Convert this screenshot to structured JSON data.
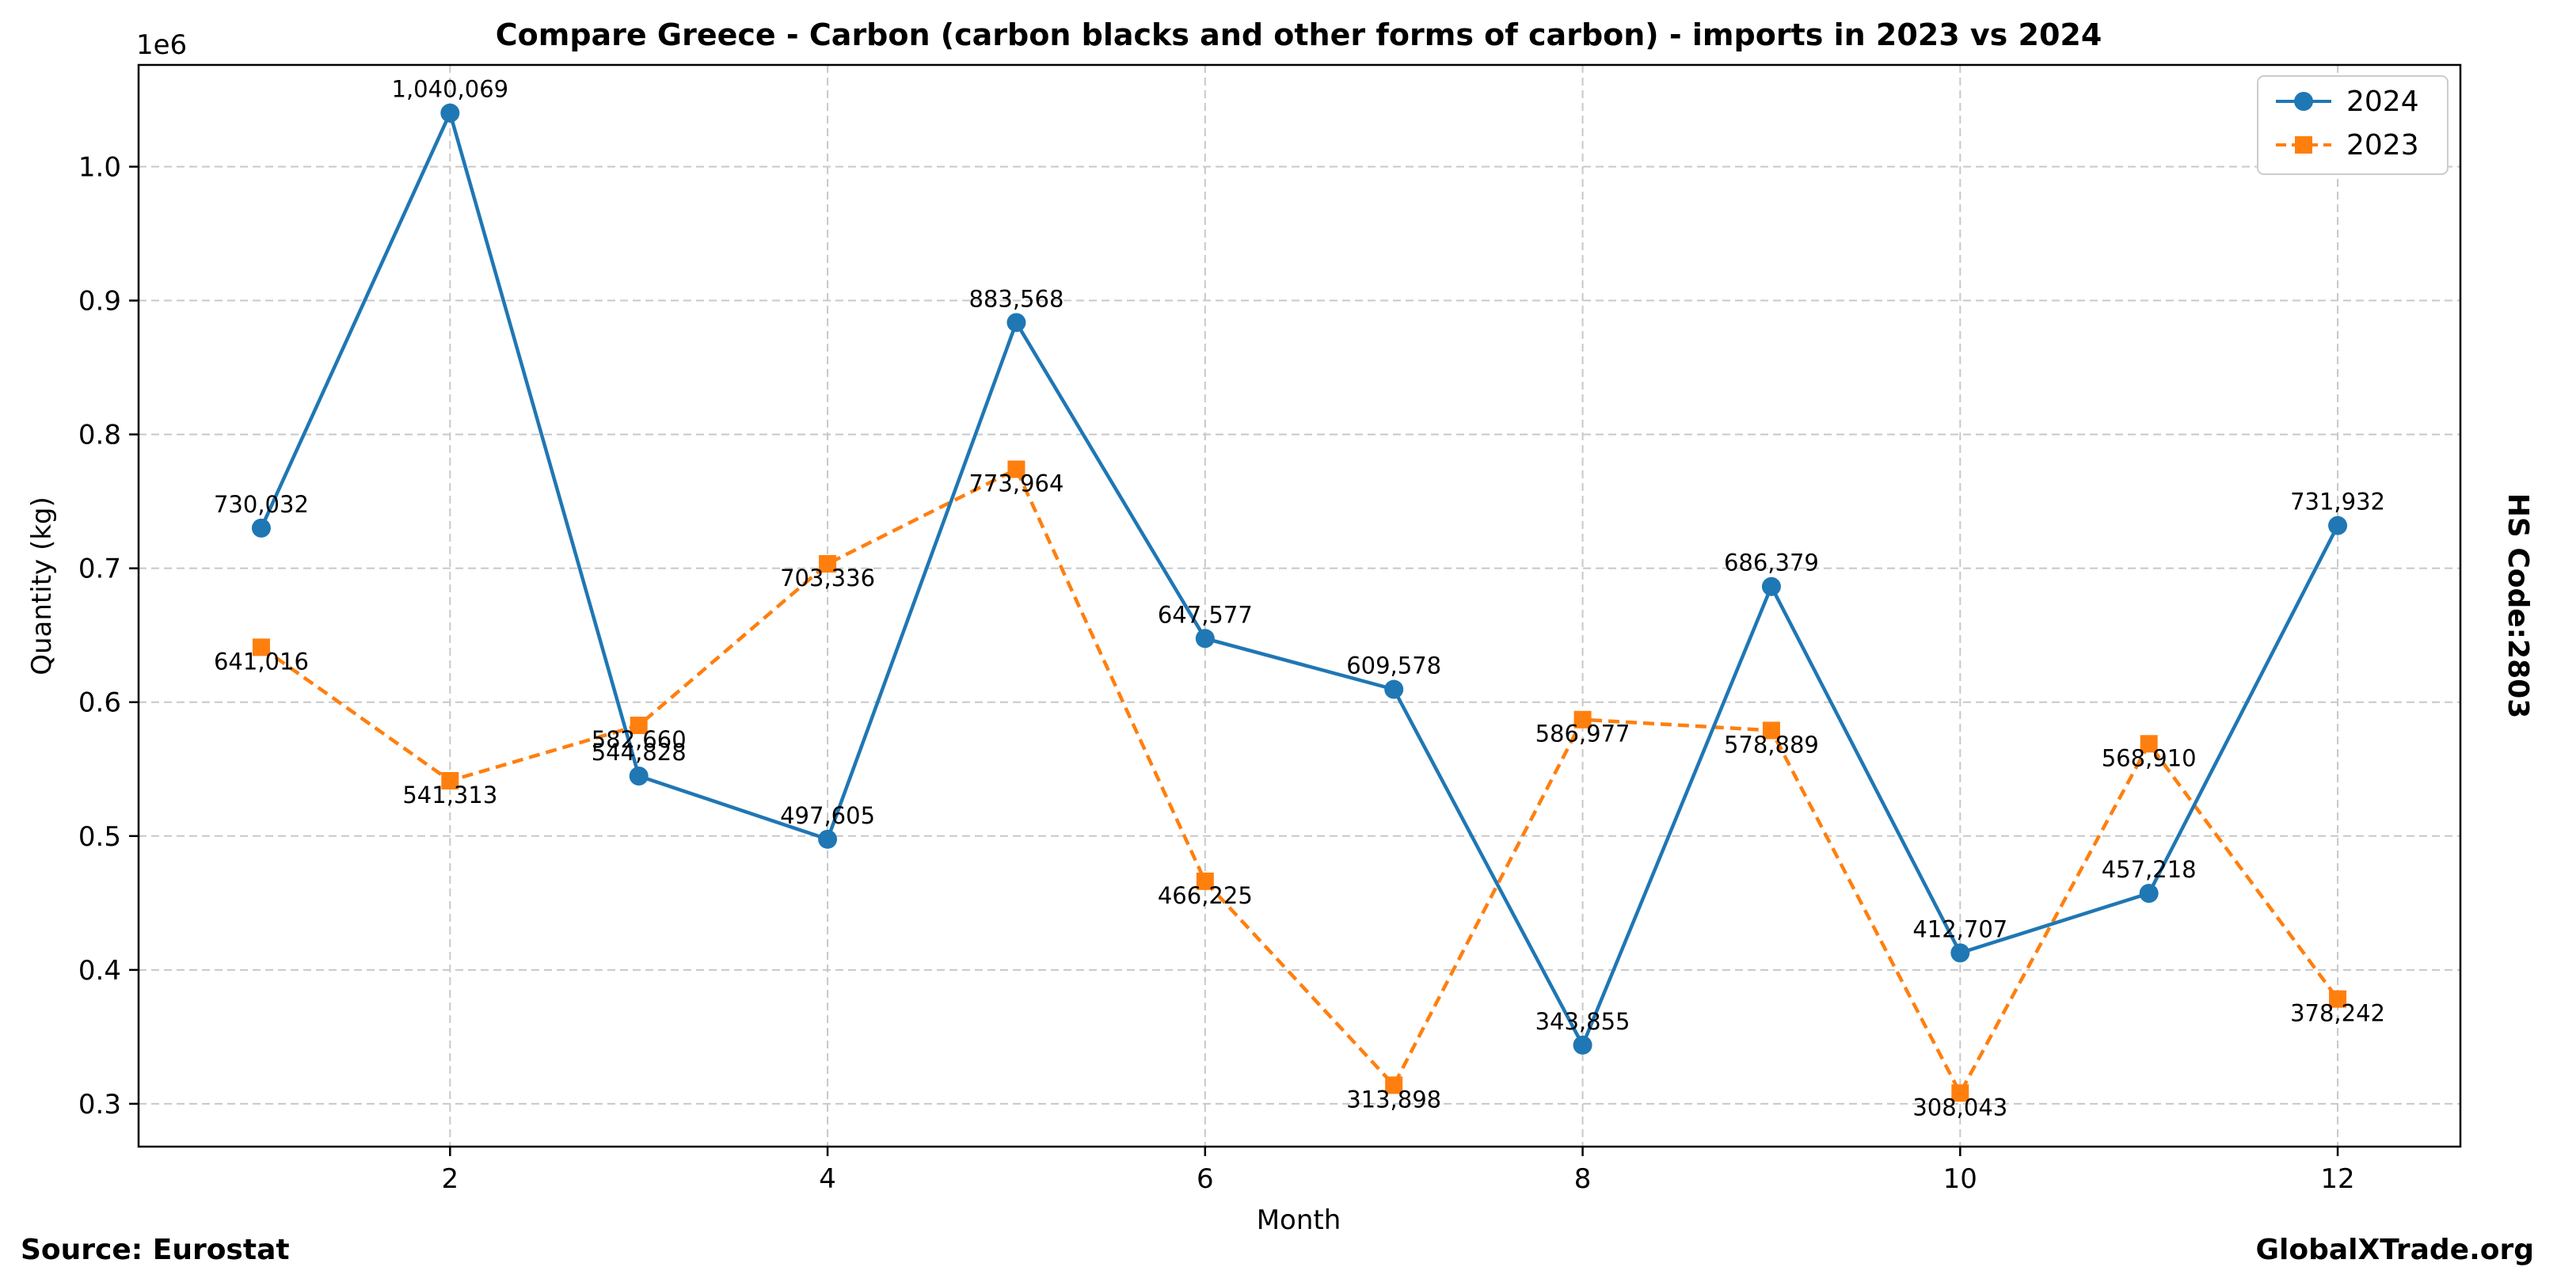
{
  "chart_data": {
    "type": "line",
    "title": "Compare Greece - Carbon (carbon blacks and other forms of carbon) - imports in 2023 vs 2024",
    "xlabel": "Month",
    "ylabel": "Quantity (kg)",
    "y_offset_label": "1e6",
    "xlim": [
      0.35,
      12.65
    ],
    "ylim": [
      268000,
      1076000
    ],
    "x_ticks": [
      2,
      4,
      6,
      8,
      10,
      12
    ],
    "y_ticks": [
      300000,
      400000,
      500000,
      600000,
      700000,
      800000,
      900000,
      1000000
    ],
    "y_tick_labels": [
      "0.3",
      "0.4",
      "0.5",
      "0.6",
      "0.7",
      "0.8",
      "0.9",
      "1.0"
    ],
    "grid": true,
    "legend_position": "top-right",
    "x": [
      1,
      2,
      3,
      4,
      5,
      6,
      7,
      8,
      9,
      10,
      11,
      12
    ],
    "series": [
      {
        "name": "2024",
        "color": "#1f77b4",
        "marker": "circle",
        "line_style": "solid",
        "values": [
          730032,
          1040069,
          544828,
          497605,
          883568,
          647577,
          609578,
          343855,
          686379,
          412707,
          457218,
          731932
        ],
        "labels": [
          "730,032",
          "1,040,069",
          "544,828",
          "497,605",
          "883,568",
          "647,577",
          "609,578",
          "343,855",
          "686,379",
          "412,707",
          "457,218",
          "731,932"
        ]
      },
      {
        "name": "2023",
        "color": "#ff7f0e",
        "marker": "square",
        "line_style": "dashed",
        "values": [
          641016,
          541313,
          582660,
          703336,
          773964,
          466225,
          313898,
          586977,
          578889,
          308043,
          568910,
          378242
        ],
        "labels": [
          "641,016",
          "541,313",
          "582,660",
          "703,336",
          "773,964",
          "466,225",
          "313,898",
          "586,977",
          "578,889",
          "308,043",
          "568,910",
          "378,242"
        ]
      }
    ]
  },
  "footer": {
    "source": "Source: Eurostat",
    "brand": "GlobalXTrade.org",
    "hs_code": "HS Code:2803"
  }
}
